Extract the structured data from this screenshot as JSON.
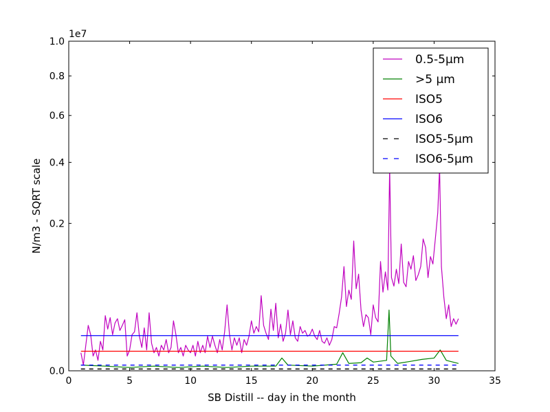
{
  "chart_data": {
    "type": "line",
    "xlabel": "SB Distill -- day in the month",
    "ylabel": "N/m3 - SQRT scale",
    "y_scale": "sqrt",
    "y_offset_text": "1e7",
    "xlim": [
      0,
      35
    ],
    "ylim": [
      0,
      1.0
    ],
    "x_ticks": [
      0,
      5,
      10,
      15,
      20,
      25,
      30,
      35
    ],
    "x_tick_labels": [
      "0",
      "5",
      "10",
      "15",
      "20",
      "25",
      "30",
      "35"
    ],
    "y_ticks": [
      0.0,
      0.2,
      0.4,
      0.6,
      0.8,
      1.0
    ],
    "y_tick_labels": [
      "0.0",
      "0.2",
      "0.4",
      "0.6",
      "0.8",
      "1.0"
    ],
    "legend_position": "top-right",
    "grid": false,
    "series": [
      {
        "name": "0.5-5µm",
        "color": "#bf00bf",
        "style": "solid",
        "points": [
          [
            1.0,
            0.003
          ],
          [
            1.2,
            0.0003
          ],
          [
            1.4,
            0.006
          ],
          [
            1.6,
            0.019
          ],
          [
            1.8,
            0.012
          ],
          [
            2.0,
            0.002
          ],
          [
            2.2,
            0.004
          ],
          [
            2.4,
            0.001
          ],
          [
            2.6,
            0.008
          ],
          [
            2.8,
            0.004
          ],
          [
            3.0,
            0.028
          ],
          [
            3.2,
            0.016
          ],
          [
            3.4,
            0.026
          ],
          [
            3.6,
            0.012
          ],
          [
            3.8,
            0.021
          ],
          [
            4.0,
            0.025
          ],
          [
            4.2,
            0.015
          ],
          [
            4.4,
            0.019
          ],
          [
            4.6,
            0.024
          ],
          [
            4.8,
            0.002
          ],
          [
            5.0,
            0.004
          ],
          [
            5.2,
            0.012
          ],
          [
            5.4,
            0.014
          ],
          [
            5.6,
            0.031
          ],
          [
            5.8,
            0.011
          ],
          [
            6.0,
            0.005
          ],
          [
            6.2,
            0.017
          ],
          [
            6.4,
            0.004
          ],
          [
            6.6,
            0.031
          ],
          [
            6.8,
            0.007
          ],
          [
            7.0,
            0.003
          ],
          [
            7.2,
            0.005
          ],
          [
            7.4,
            0.002
          ],
          [
            7.6,
            0.006
          ],
          [
            7.8,
            0.004
          ],
          [
            8.0,
            0.009
          ],
          [
            8.2,
            0.003
          ],
          [
            8.4,
            0.005
          ],
          [
            8.6,
            0.023
          ],
          [
            8.8,
            0.012
          ],
          [
            9.0,
            0.003
          ],
          [
            9.2,
            0.005
          ],
          [
            9.4,
            0.002
          ],
          [
            9.6,
            0.006
          ],
          [
            9.8,
            0.004
          ],
          [
            10.0,
            0.003
          ],
          [
            10.2,
            0.006
          ],
          [
            10.4,
            0.002
          ],
          [
            10.6,
            0.008
          ],
          [
            10.8,
            0.003
          ],
          [
            11.0,
            0.006
          ],
          [
            11.2,
            0.003
          ],
          [
            11.4,
            0.011
          ],
          [
            11.6,
            0.005
          ],
          [
            11.8,
            0.011
          ],
          [
            12.0,
            0.006
          ],
          [
            12.2,
            0.003
          ],
          [
            12.4,
            0.009
          ],
          [
            12.6,
            0.004
          ],
          [
            12.8,
            0.014
          ],
          [
            13.0,
            0.04
          ],
          [
            13.2,
            0.012
          ],
          [
            13.4,
            0.004
          ],
          [
            13.6,
            0.01
          ],
          [
            13.8,
            0.006
          ],
          [
            14.0,
            0.01
          ],
          [
            14.2,
            0.003
          ],
          [
            14.4,
            0.009
          ],
          [
            14.6,
            0.006
          ],
          [
            14.8,
            0.011
          ],
          [
            15.0,
            0.023
          ],
          [
            15.2,
            0.013
          ],
          [
            15.4,
            0.018
          ],
          [
            15.6,
            0.014
          ],
          [
            15.8,
            0.052
          ],
          [
            16.0,
            0.019
          ],
          [
            16.2,
            0.013
          ],
          [
            16.4,
            0.009
          ],
          [
            16.6,
            0.035
          ],
          [
            16.8,
            0.015
          ],
          [
            17.0,
            0.042
          ],
          [
            17.2,
            0.01
          ],
          [
            17.4,
            0.02
          ],
          [
            17.6,
            0.008
          ],
          [
            17.8,
            0.013
          ],
          [
            18.0,
            0.034
          ],
          [
            18.2,
            0.012
          ],
          [
            18.4,
            0.023
          ],
          [
            18.6,
            0.01
          ],
          [
            18.8,
            0.008
          ],
          [
            19.0,
            0.018
          ],
          [
            19.2,
            0.013
          ],
          [
            19.4,
            0.015
          ],
          [
            19.6,
            0.011
          ],
          [
            19.8,
            0.012
          ],
          [
            20.0,
            0.016
          ],
          [
            20.2,
            0.011
          ],
          [
            20.4,
            0.009
          ],
          [
            20.6,
            0.015
          ],
          [
            20.8,
            0.008
          ],
          [
            21.0,
            0.007
          ],
          [
            21.2,
            0.01
          ],
          [
            21.4,
            0.006
          ],
          [
            21.6,
            0.009
          ],
          [
            21.8,
            0.018
          ],
          [
            22.0,
            0.017
          ],
          [
            22.2,
            0.03
          ],
          [
            22.4,
            0.05
          ],
          [
            22.6,
            0.1
          ],
          [
            22.8,
            0.038
          ],
          [
            23.0,
            0.06
          ],
          [
            23.2,
            0.047
          ],
          [
            23.4,
            0.155
          ],
          [
            23.6,
            0.062
          ],
          [
            23.8,
            0.086
          ],
          [
            24.0,
            0.034
          ],
          [
            24.2,
            0.018
          ],
          [
            24.4,
            0.029
          ],
          [
            24.6,
            0.026
          ],
          [
            24.8,
            0.012
          ],
          [
            25.0,
            0.04
          ],
          [
            25.2,
            0.026
          ],
          [
            25.4,
            0.022
          ],
          [
            25.6,
            0.11
          ],
          [
            25.8,
            0.057
          ],
          [
            26.0,
            0.09
          ],
          [
            26.2,
            0.06
          ],
          [
            26.35,
            0.38
          ],
          [
            26.5,
            0.08
          ],
          [
            26.7,
            0.066
          ],
          [
            26.9,
            0.095
          ],
          [
            27.1,
            0.07
          ],
          [
            27.3,
            0.148
          ],
          [
            27.5,
            0.072
          ],
          [
            27.7,
            0.065
          ],
          [
            27.9,
            0.11
          ],
          [
            28.1,
            0.095
          ],
          [
            28.3,
            0.122
          ],
          [
            28.5,
            0.075
          ],
          [
            28.7,
            0.085
          ],
          [
            28.9,
            0.1
          ],
          [
            29.1,
            0.16
          ],
          [
            29.3,
            0.14
          ],
          [
            29.5,
            0.08
          ],
          [
            29.7,
            0.12
          ],
          [
            29.9,
            0.105
          ],
          [
            30.1,
            0.16
          ],
          [
            30.3,
            0.23
          ],
          [
            30.45,
            0.38
          ],
          [
            30.6,
            0.1
          ],
          [
            30.8,
            0.05
          ],
          [
            31.0,
            0.025
          ],
          [
            31.2,
            0.04
          ],
          [
            31.4,
            0.018
          ],
          [
            31.6,
            0.025
          ],
          [
            31.8,
            0.02
          ],
          [
            32.0,
            0.025
          ]
        ]
      },
      {
        "name": ">5 µm",
        "color": "#008000",
        "style": "solid",
        "points": [
          [
            1.0,
            0.0003
          ],
          [
            3.0,
            0.0002
          ],
          [
            5.0,
            0.0001
          ],
          [
            7.0,
            0.0002
          ],
          [
            9.0,
            0.0001
          ],
          [
            11.0,
            0.0002
          ],
          [
            13.0,
            0.0001
          ],
          [
            15.0,
            0.0002
          ],
          [
            17.0,
            0.0002
          ],
          [
            17.5,
            0.0015
          ],
          [
            18.0,
            0.0003
          ],
          [
            20.0,
            0.0002
          ],
          [
            22.0,
            0.0004
          ],
          [
            22.5,
            0.003
          ],
          [
            23.0,
            0.0005
          ],
          [
            24.0,
            0.0006
          ],
          [
            24.5,
            0.0015
          ],
          [
            25.0,
            0.0007
          ],
          [
            26.1,
            0.001
          ],
          [
            26.3,
            0.034
          ],
          [
            26.45,
            0.002
          ],
          [
            27.0,
            0.0005
          ],
          [
            28.0,
            0.0008
          ],
          [
            29.0,
            0.0012
          ],
          [
            30.0,
            0.0015
          ],
          [
            30.5,
            0.004
          ],
          [
            31.0,
            0.001
          ],
          [
            32.0,
            0.0005
          ]
        ]
      },
      {
        "name": "ISO5",
        "color": "#ff0000",
        "style": "solid",
        "points": [
          [
            1.0,
            0.00352
          ],
          [
            32.0,
            0.00352
          ]
        ]
      },
      {
        "name": "ISO6",
        "color": "#0000ff",
        "style": "solid",
        "points": [
          [
            1.0,
            0.0114
          ],
          [
            32.0,
            0.0114
          ]
        ]
      },
      {
        "name": "ISO5-5µm",
        "color": "#000000",
        "style": "dashed",
        "points": [
          [
            1.0,
            3e-05
          ],
          [
            32.0,
            3e-05
          ]
        ]
      },
      {
        "name": "ISO6-5µm",
        "color": "#0000ff",
        "style": "dashed",
        "points": [
          [
            1.0,
            0.0003
          ],
          [
            32.0,
            0.0003
          ]
        ]
      }
    ]
  }
}
